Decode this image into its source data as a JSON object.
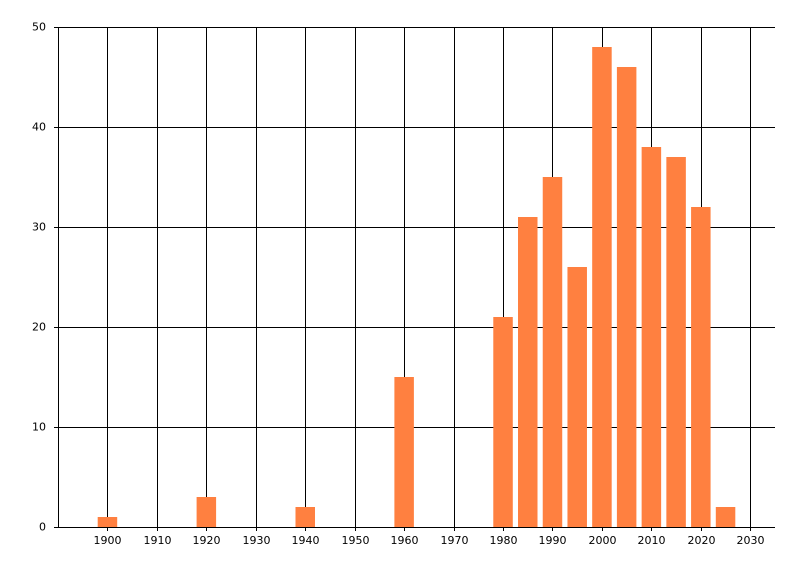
{
  "chart_data": {
    "type": "bar",
    "x": [
      1900,
      1920,
      1940,
      1960,
      1980,
      1985,
      1990,
      1995,
      2000,
      2005,
      2010,
      2015,
      2020,
      2025
    ],
    "values": [
      1,
      3,
      2,
      15,
      21,
      31,
      35,
      26,
      48,
      46,
      38,
      37,
      32,
      2
    ],
    "color": "#ff8040",
    "xlim": [
      1890,
      2035
    ],
    "xticks": [
      1900,
      1910,
      1920,
      1930,
      1940,
      1950,
      1960,
      1970,
      1980,
      1990,
      2000,
      2010,
      2020,
      2030
    ],
    "ylim": [
      0,
      50
    ],
    "yticks": [
      0,
      10,
      20,
      30,
      40,
      50
    ],
    "grid": true
  }
}
